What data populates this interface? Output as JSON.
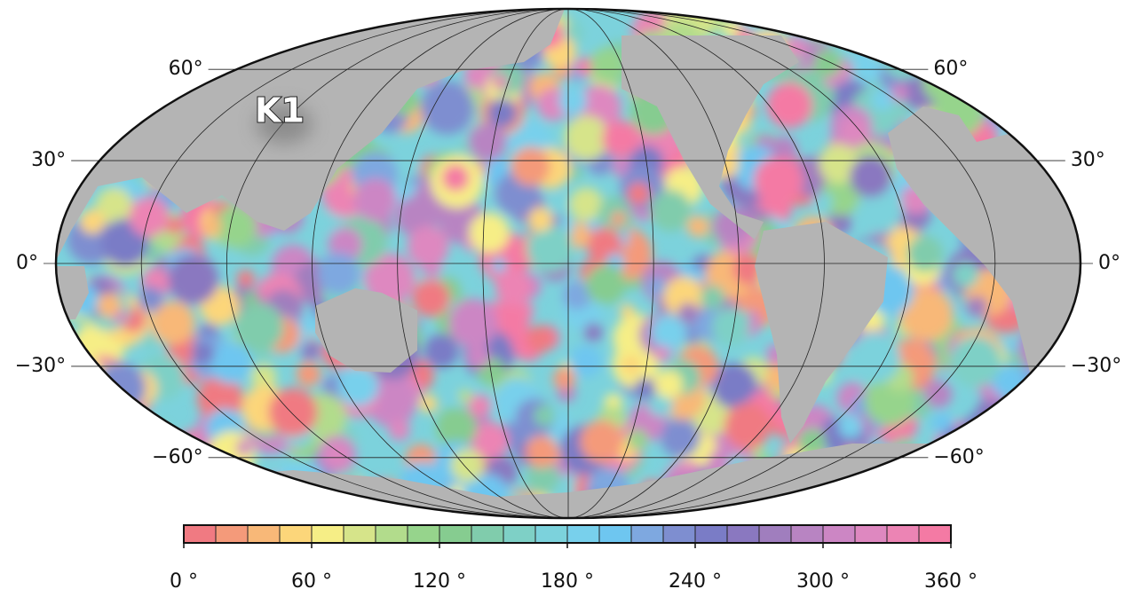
{
  "map": {
    "label": "K1",
    "latitude_ticks": [
      {
        "value": 60,
        "label": "60°"
      },
      {
        "value": 30,
        "label": "30°"
      },
      {
        "value": 0,
        "label": "0°"
      },
      {
        "value": -30,
        "label": "−30°"
      },
      {
        "value": -60,
        "label": "−60°"
      }
    ],
    "colorbar": {
      "range": [
        0,
        360
      ],
      "ticks": [
        {
          "value": 0,
          "label": "0 °"
        },
        {
          "value": 60,
          "label": "60 °"
        },
        {
          "value": 120,
          "label": "120 °"
        },
        {
          "value": 180,
          "label": "180 °"
        },
        {
          "value": 240,
          "label": "240 °"
        },
        {
          "value": 300,
          "label": "300 °"
        },
        {
          "value": 360,
          "label": "360 °"
        }
      ],
      "colors": [
        "#f07a82",
        "#f49a7a",
        "#f8b878",
        "#fcd67a",
        "#f6ee86",
        "#d6e48a",
        "#b2dc8c",
        "#96d48c",
        "#86cc90",
        "#80ccac",
        "#7ed0c6",
        "#7cd2dc",
        "#78d0ec",
        "#6ec6f0",
        "#7ea8e0",
        "#7e8ed0",
        "#7a7cc6",
        "#8a78c0",
        "#a07ebe",
        "#b884c2",
        "#cc86c4",
        "#de88c0",
        "#ec84b4",
        "#f47aa4"
      ]
    }
  }
}
